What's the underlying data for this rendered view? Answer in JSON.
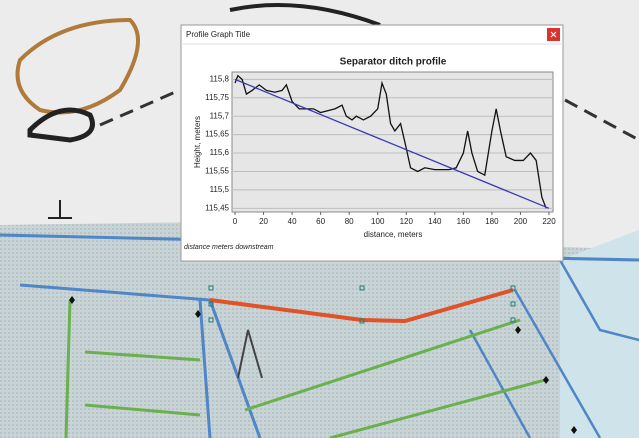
{
  "window_title": "Profile Graph Title",
  "footnote": "distance meters downstream",
  "chart_data": {
    "type": "line",
    "title": "Separator ditch profile",
    "x_label": "distance, meters",
    "y_label": "Height, meters",
    "series": [
      {
        "color": "#111111",
        "x": [
          0,
          2,
          5,
          8,
          12,
          17,
          22,
          28,
          33,
          36,
          40,
          45,
          55,
          60,
          70,
          75,
          78,
          82,
          85,
          90,
          95,
          100,
          103,
          106,
          109,
          112,
          116,
          119,
          123,
          128,
          133,
          140,
          150,
          155,
          160,
          163,
          166,
          170,
          175,
          180,
          183,
          186,
          190,
          196,
          202,
          207,
          211,
          215,
          218
        ],
        "values": [
          115.79,
          115.81,
          115.8,
          115.76,
          115.77,
          115.785,
          115.77,
          115.765,
          115.77,
          115.785,
          115.74,
          115.72,
          115.72,
          115.71,
          115.72,
          115.73,
          115.7,
          115.69,
          115.7,
          115.69,
          115.7,
          115.72,
          115.79,
          115.76,
          115.68,
          115.66,
          115.68,
          115.63,
          115.56,
          115.55,
          115.56,
          115.555,
          115.555,
          115.56,
          115.6,
          115.66,
          115.6,
          115.55,
          115.54,
          115.66,
          115.72,
          115.66,
          115.59,
          115.58,
          115.58,
          115.6,
          115.58,
          115.48,
          115.45
        ]
      },
      {
        "color": "#3a3ab8",
        "x": [
          0,
          220
        ],
        "values": [
          115.8,
          115.45
        ]
      }
    ],
    "xlim": [
      0,
      220
    ],
    "xticks": [
      0,
      20,
      40,
      60,
      80,
      100,
      120,
      140,
      160,
      180,
      200,
      220
    ],
    "ylim": [
      115.44,
      115.82
    ],
    "yticks": [
      {
        "value": 115.45,
        "label": "115,45"
      },
      {
        "value": 115.5,
        "label": "115,5"
      },
      {
        "value": 115.55,
        "label": "115,55"
      },
      {
        "value": 115.6,
        "label": "115,6"
      },
      {
        "value": 115.65,
        "label": "115,65"
      },
      {
        "value": 115.7,
        "label": "115,7"
      },
      {
        "value": 115.75,
        "label": "115,75"
      },
      {
        "value": 115.8,
        "label": "115,8"
      }
    ],
    "grid": true
  }
}
